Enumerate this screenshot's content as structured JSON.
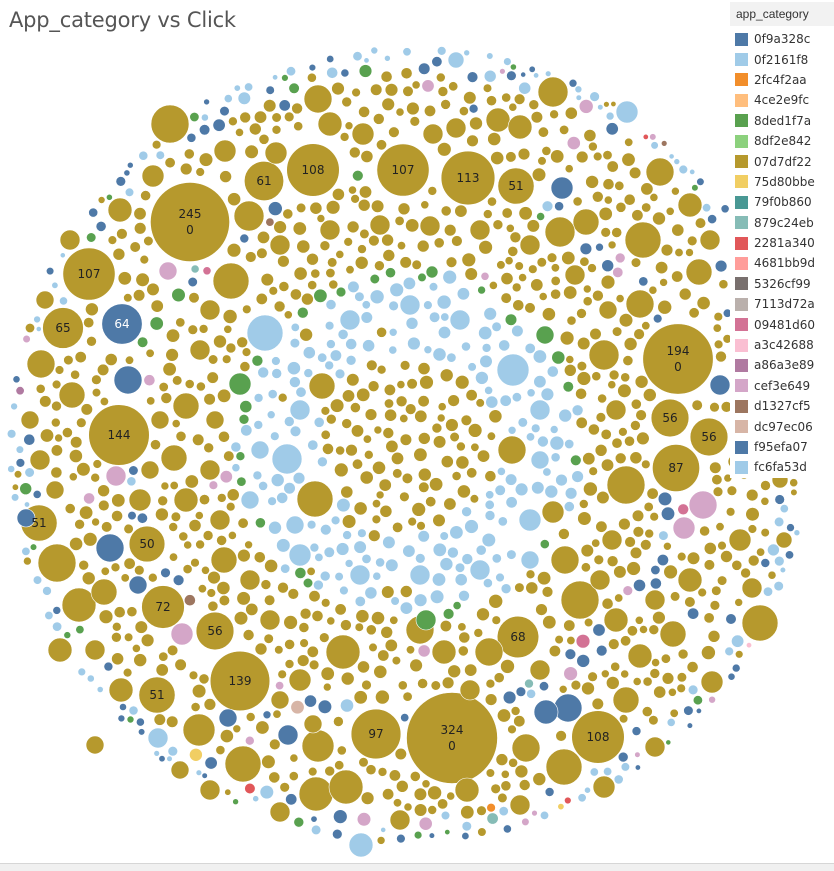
{
  "title": "App_category vs Click",
  "legend": {
    "title": "app_category",
    "items": [
      {
        "label": "0f9a328c",
        "color": "#4e79a7"
      },
      {
        "label": "0f2161f8",
        "color": "#a0cbe8"
      },
      {
        "label": "2fc4f2aa",
        "color": "#f28e2b"
      },
      {
        "label": "4ce2e9fc",
        "color": "#ffbe7d"
      },
      {
        "label": "8ded1f7a",
        "color": "#59a14f"
      },
      {
        "label": "8df2e842",
        "color": "#8cd17d"
      },
      {
        "label": "07d7df22",
        "color": "#b6992d"
      },
      {
        "label": "75d80bbe",
        "color": "#f1ce63"
      },
      {
        "label": "79f0b860",
        "color": "#499894"
      },
      {
        "label": "879c24eb",
        "color": "#86bcb6"
      },
      {
        "label": "2281a340",
        "color": "#e15759"
      },
      {
        "label": "4681bb9d",
        "color": "#ff9d9a"
      },
      {
        "label": "5326cf99",
        "color": "#79706e"
      },
      {
        "label": "7113d72a",
        "color": "#bab0ac"
      },
      {
        "label": "09481d60",
        "color": "#d37295"
      },
      {
        "label": "a3c42688",
        "color": "#fabfd2"
      },
      {
        "label": "a86a3e89",
        "color": "#b07aa1"
      },
      {
        "label": "cef3e649",
        "color": "#d4a6c8"
      },
      {
        "label": "d1327cf5",
        "color": "#9d7660"
      },
      {
        "label": "dc97ec06",
        "color": "#d7b5a6"
      },
      {
        "label": "f95efa07",
        "color": "#4e79a7"
      },
      {
        "label": "fc6fa53d",
        "color": "#a0cbe8"
      }
    ]
  },
  "chart_data": {
    "type": "bubble",
    "title": "App_category vs Click",
    "legend_position": "top-right",
    "labeled_bubbles": [
      {
        "size": 324,
        "click": 0,
        "category": "07d7df22"
      },
      {
        "size": 245,
        "click": 0,
        "category": "07d7df22"
      },
      {
        "size": 194,
        "click": 0,
        "category": "07d7df22"
      },
      {
        "size": 144,
        "category": "07d7df22"
      },
      {
        "size": 139,
        "category": "07d7df22"
      },
      {
        "size": 113,
        "category": "07d7df22"
      },
      {
        "size": 108,
        "category": "07d7df22"
      },
      {
        "size": 108,
        "category": "07d7df22"
      },
      {
        "size": 107,
        "category": "07d7df22"
      },
      {
        "size": 107,
        "category": "07d7df22"
      },
      {
        "size": 97,
        "category": "07d7df22"
      },
      {
        "size": 87,
        "category": "07d7df22"
      },
      {
        "size": 72,
        "category": "07d7df22"
      },
      {
        "size": 68,
        "category": "07d7df22"
      },
      {
        "size": 65,
        "category": "07d7df22"
      },
      {
        "size": 64,
        "category": "f95efa07"
      },
      {
        "size": 61,
        "category": "07d7df22"
      },
      {
        "size": 56,
        "category": "07d7df22"
      },
      {
        "size": 56,
        "category": "07d7df22"
      },
      {
        "size": 56,
        "category": "07d7df22"
      },
      {
        "size": 51,
        "category": "07d7df22"
      },
      {
        "size": 51,
        "category": "07d7df22"
      },
      {
        "size": 51,
        "category": "07d7df22"
      },
      {
        "size": 50,
        "category": "07d7df22"
      }
    ]
  }
}
